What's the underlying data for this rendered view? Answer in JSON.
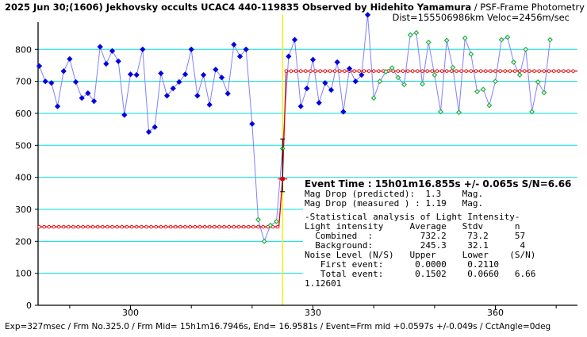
{
  "header": {
    "title_bold": "2025 Jun 30;(1606) Jekhovsky occults UCAC4 440-119835 Observed by Hidehito Yamamura",
    "title_rest": " / PSF-Frame Photometry /",
    "line2": "Dist=155506986km Veloc=2456m/sec"
  },
  "footer": "Exp=327msec / Frm No.325.0 / Frm Mid= 15h1m16.7946s, End= 16.9581s / Event=Frm mid +0.0597s +/-0.049s / CctAngle=0deg",
  "annotation": {
    "event_time": "Event Time : 15h01m16.855s  +/- 0.065s  S/N=6.66",
    "drop_pred": "Mag Drop (predicted):  1.3    Mag.",
    "drop_meas": "Mag Drop (measured ) : 1.19   Mag.",
    "stat_title": "-Statistical analysis of Light Intensity-",
    "stat_header": "Light intensity     Average   Stdv      n",
    "stat_combined": "  Combined  :         732.2    73.2     57",
    "stat_background": "  Background:         245.3    32.1      4",
    "noise_header": "Noise Level (N/S)   Upper     Lower    (S/N)",
    "noise_first": "   First event:      0.0000    0.2110",
    "noise_total": "   Total event:      0.1502    0.0660   6.66",
    "extra": "1.12601"
  },
  "colors": {
    "background": "#ffffff",
    "grid": "#00e0e0",
    "series_line": "#8080ff",
    "measured_point": "#0000e0",
    "fitted_point": "#20b040",
    "model": "#e00000",
    "event_line": "#f0f000",
    "error_bar": "#000000"
  },
  "chart_data": {
    "type": "scatter",
    "x_ticks": [
      300,
      330,
      360
    ],
    "y_ticks": [
      0,
      100,
      200,
      300,
      400,
      500,
      600,
      700,
      800
    ],
    "xlim": [
      284.8,
      373.5
    ],
    "ylim": [
      0,
      885
    ],
    "event_frame": 325.0,
    "event_intensity": 395,
    "event_error_bar": [
      355,
      520
    ],
    "series": [
      {
        "marker": "diamond",
        "color_key": "measured_point",
        "points": [
          [
            285,
            748
          ],
          [
            286,
            700
          ],
          [
            287,
            695
          ],
          [
            288,
            622
          ],
          [
            289,
            732
          ],
          [
            290,
            770
          ],
          [
            291,
            698
          ],
          [
            292,
            648
          ],
          [
            293,
            663
          ],
          [
            294,
            638
          ],
          [
            295,
            808
          ],
          [
            296,
            755
          ],
          [
            297,
            795
          ],
          [
            298,
            763
          ],
          [
            299,
            595
          ],
          [
            300,
            722
          ],
          [
            301,
            720
          ],
          [
            302,
            800
          ],
          [
            303,
            542
          ],
          [
            304,
            557
          ],
          [
            305,
            725
          ],
          [
            306,
            655
          ],
          [
            307,
            678
          ],
          [
            308,
            698
          ],
          [
            309,
            722
          ],
          [
            310,
            800
          ],
          [
            311,
            655
          ],
          [
            312,
            720
          ],
          [
            313,
            627
          ],
          [
            314,
            737
          ],
          [
            315,
            712
          ],
          [
            316,
            662
          ],
          [
            317,
            815
          ],
          [
            318,
            778
          ],
          [
            319,
            800
          ],
          [
            320,
            567
          ],
          [
            326,
            778
          ],
          [
            327,
            830
          ],
          [
            328,
            622
          ],
          [
            329,
            678
          ],
          [
            330,
            768
          ],
          [
            331,
            633
          ],
          [
            332,
            695
          ],
          [
            333,
            673
          ],
          [
            334,
            760
          ],
          [
            335,
            605
          ],
          [
            336,
            740
          ],
          [
            337,
            700
          ],
          [
            338,
            720
          ],
          [
            339,
            908
          ]
        ]
      },
      {
        "marker": "diamond-small",
        "color_key": "fitted_point",
        "points": [
          [
            321,
            268
          ],
          [
            322,
            200
          ],
          [
            323,
            250
          ],
          [
            324,
            262
          ],
          [
            325,
            490
          ],
          [
            340,
            648
          ],
          [
            341,
            700
          ],
          [
            342,
            730
          ],
          [
            343,
            742
          ],
          [
            344,
            712
          ],
          [
            345,
            690
          ],
          [
            346,
            845
          ],
          [
            347,
            852
          ],
          [
            348,
            692
          ],
          [
            349,
            822
          ],
          [
            350,
            720
          ],
          [
            351,
            605
          ],
          [
            352,
            828
          ],
          [
            353,
            743
          ],
          [
            354,
            603
          ],
          [
            355,
            835
          ],
          [
            356,
            785
          ],
          [
            357,
            668
          ],
          [
            358,
            675
          ],
          [
            359,
            625
          ],
          [
            360,
            700
          ],
          [
            361,
            830
          ],
          [
            362,
            838
          ],
          [
            363,
            760
          ],
          [
            364,
            720
          ],
          [
            365,
            800
          ],
          [
            366,
            605
          ],
          [
            367,
            698
          ],
          [
            368,
            665
          ],
          [
            369,
            830
          ]
        ]
      }
    ],
    "model": {
      "points": [
        [
          284.8,
          245.3
        ],
        [
          324.4,
          245.3
        ],
        [
          325.0,
          395
        ],
        [
          325.6,
          732.2
        ],
        [
          373.5,
          732.2
        ]
      ]
    }
  }
}
